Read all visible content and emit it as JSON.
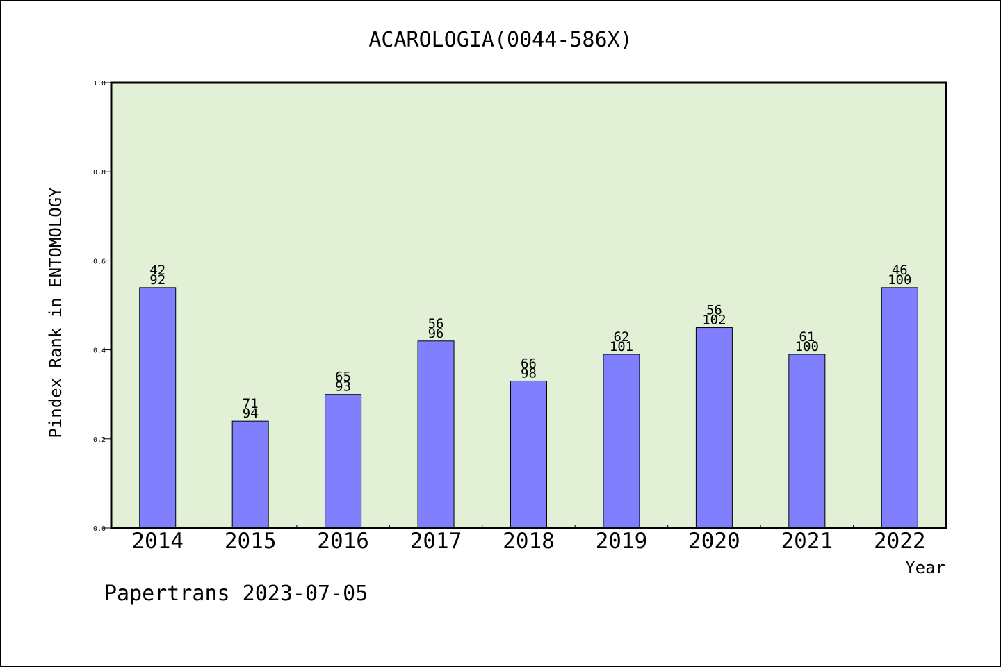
{
  "chart_data": {
    "type": "bar",
    "title": "ACAROLOGIA(0044-586X)",
    "xlabel": "Year",
    "ylabel": "Pindex Rank in ENTOMOLOGY",
    "categories": [
      "2014",
      "2015",
      "2016",
      "2017",
      "2018",
      "2019",
      "2020",
      "2021",
      "2022"
    ],
    "values": [
      0.54,
      0.24,
      0.3,
      0.42,
      0.33,
      0.39,
      0.45,
      0.39,
      0.54
    ],
    "label_top": [
      "42",
      "71",
      "65",
      "56",
      "66",
      "62",
      "56",
      "61",
      "46"
    ],
    "label_bottom": [
      "92",
      "94",
      "93",
      "96",
      "98",
      "101",
      "102",
      "100",
      "100"
    ],
    "ylim": [
      0,
      1.0
    ],
    "yticks": [
      "0.0",
      "0.2",
      "0.4",
      "0.6",
      "0.8",
      "1.0"
    ],
    "grid": false,
    "colors": {
      "bar": "#8080ff",
      "plot_background": "#e2f0d6",
      "axis": "#000000"
    }
  },
  "footer": {
    "text": "Papertrans 2023-07-05"
  }
}
